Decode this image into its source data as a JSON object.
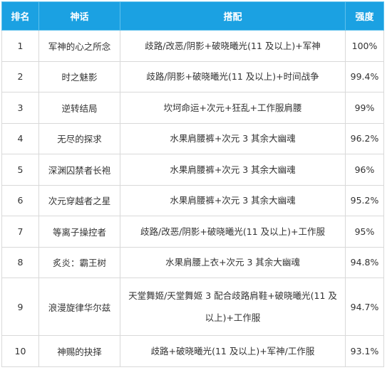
{
  "table": {
    "headers": {
      "rank": "排名",
      "name": "神话",
      "combo": "搭配",
      "strength": "强度"
    },
    "rows": [
      {
        "rank": "1",
        "name": "军神的心之所念",
        "combo": "歧路/改恶/阴影+破晓曦光(11 及以上)+军神",
        "strength": "100%"
      },
      {
        "rank": "2",
        "name": "时之魅影",
        "combo": "歧路/阴影+破晓曦光(11 及以上)+时间战争",
        "strength": "99.4%"
      },
      {
        "rank": "3",
        "name": "逆转结局",
        "combo": "坎坷命运+次元+狂乱+工作服肩腰",
        "strength": "99%"
      },
      {
        "rank": "4",
        "name": "无尽的探求",
        "combo": "水果肩腰裤+次元 3 其余大幽魂",
        "strength": "96.2%"
      },
      {
        "rank": "5",
        "name": "深渊囚禁者长袍",
        "combo": "水果肩腰裤+次元 3 其余大幽魂",
        "strength": "96%"
      },
      {
        "rank": "6",
        "name": "次元穿越者之星",
        "combo": "水果肩腰裤+次元 3 其余大幽魂",
        "strength": "95.2%"
      },
      {
        "rank": "7",
        "name": "等离子操控者",
        "combo": "歧路/改恶/阴影+破晓曦光(11 及以上)+工作服",
        "strength": "95%"
      },
      {
        "rank": "8",
        "name": "炙炎：霸王树",
        "combo": "水果肩腰上衣+次元 3 其余大幽魂",
        "strength": "94.8%"
      },
      {
        "rank": "9",
        "name": "浪漫旋律华尔兹",
        "combo": "天堂舞姬/天堂舞姬 3 配合歧路肩鞋+破晓曦光(11 及以上)+工作服",
        "strength": "94.7%"
      },
      {
        "rank": "10",
        "name": "神赐的抉择",
        "combo": "歧路+破晓曦光(11 及以上)+军神/工作服",
        "strength": "93.1%"
      }
    ]
  }
}
